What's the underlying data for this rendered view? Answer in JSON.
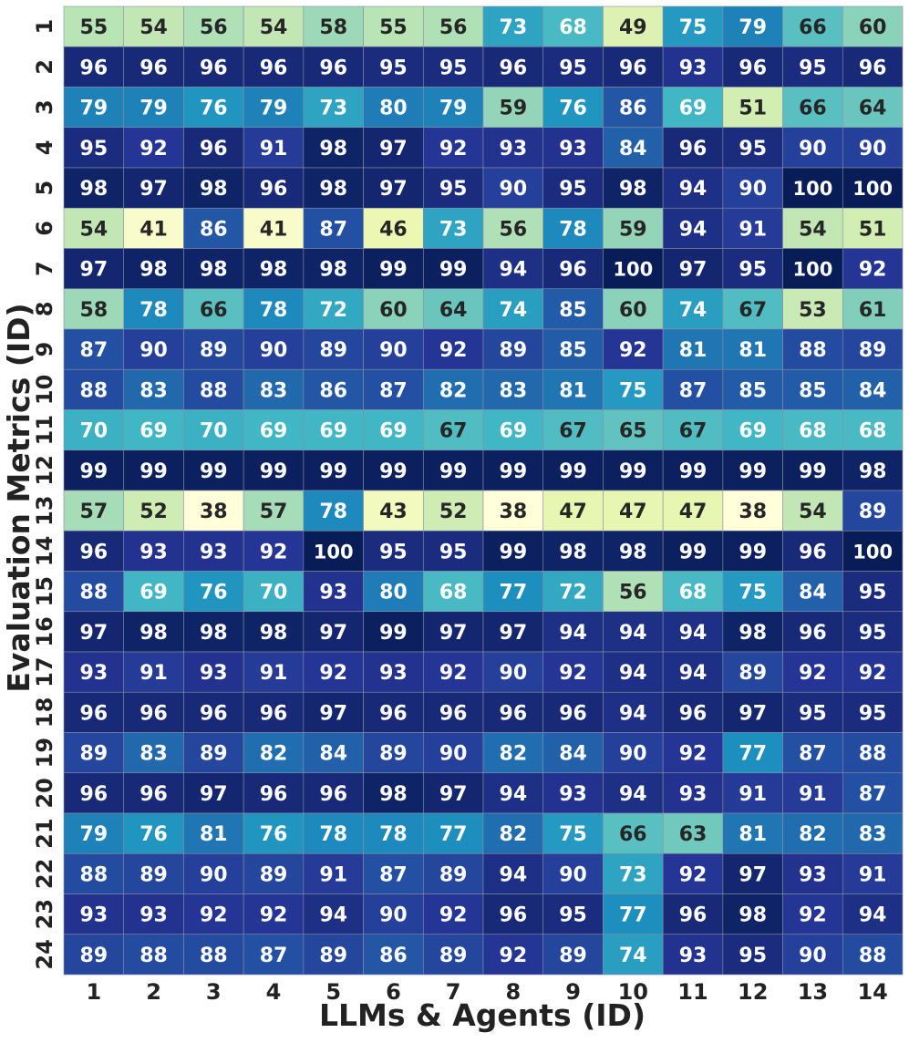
{
  "chart_data": {
    "type": "heatmap",
    "xlabel": "LLMs & Agents (ID)",
    "ylabel": "Evaluation Metrics (ID)",
    "x_categories": [
      "1",
      "2",
      "3",
      "4",
      "5",
      "6",
      "7",
      "8",
      "9",
      "10",
      "11",
      "12",
      "13",
      "14"
    ],
    "y_categories": [
      "1",
      "2",
      "3",
      "4",
      "5",
      "6",
      "7",
      "8",
      "9",
      "10",
      "11",
      "12",
      "13",
      "14",
      "15",
      "16",
      "17",
      "18",
      "19",
      "20",
      "21",
      "22",
      "23",
      "24"
    ],
    "colormap": "YlGnBu",
    "value_range": [
      38,
      100
    ],
    "values": [
      [
        55,
        54,
        56,
        54,
        58,
        55,
        56,
        73,
        68,
        49,
        75,
        79,
        66,
        60
      ],
      [
        96,
        96,
        96,
        96,
        96,
        95,
        95,
        96,
        95,
        96,
        93,
        96,
        95,
        96
      ],
      [
        79,
        79,
        76,
        79,
        73,
        80,
        79,
        59,
        76,
        86,
        69,
        51,
        66,
        64
      ],
      [
        95,
        92,
        96,
        91,
        98,
        97,
        92,
        93,
        93,
        84,
        96,
        95,
        90,
        90
      ],
      [
        98,
        97,
        98,
        96,
        98,
        97,
        95,
        90,
        95,
        98,
        94,
        90,
        100,
        100
      ],
      [
        54,
        41,
        86,
        41,
        87,
        46,
        73,
        56,
        78,
        59,
        94,
        91,
        54,
        51
      ],
      [
        97,
        98,
        98,
        98,
        98,
        99,
        99,
        94,
        96,
        100,
        97,
        95,
        100,
        92
      ],
      [
        58,
        78,
        66,
        78,
        72,
        60,
        64,
        74,
        85,
        60,
        74,
        67,
        53,
        61
      ],
      [
        87,
        90,
        89,
        90,
        89,
        90,
        92,
        89,
        85,
        92,
        81,
        81,
        88,
        89
      ],
      [
        88,
        83,
        88,
        83,
        86,
        87,
        82,
        83,
        81,
        75,
        87,
        85,
        85,
        84
      ],
      [
        70,
        69,
        70,
        69,
        69,
        69,
        67,
        69,
        67,
        65,
        67,
        69,
        68,
        68
      ],
      [
        99,
        99,
        99,
        99,
        99,
        99,
        99,
        99,
        99,
        99,
        99,
        99,
        99,
        98
      ],
      [
        57,
        52,
        38,
        57,
        78,
        43,
        52,
        38,
        47,
        47,
        47,
        38,
        54,
        89
      ],
      [
        96,
        93,
        93,
        92,
        100,
        95,
        95,
        99,
        98,
        98,
        99,
        99,
        96,
        100
      ],
      [
        88,
        69,
        76,
        70,
        93,
        80,
        68,
        77,
        72,
        56,
        68,
        75,
        84,
        95
      ],
      [
        97,
        98,
        98,
        98,
        97,
        99,
        97,
        97,
        94,
        94,
        94,
        98,
        96,
        95
      ],
      [
        93,
        91,
        93,
        91,
        92,
        93,
        92,
        90,
        92,
        94,
        94,
        89,
        92,
        92
      ],
      [
        96,
        96,
        96,
        96,
        97,
        96,
        96,
        96,
        96,
        94,
        96,
        97,
        95,
        95
      ],
      [
        89,
        83,
        89,
        82,
        84,
        89,
        90,
        82,
        84,
        90,
        92,
        77,
        87,
        88
      ],
      [
        96,
        96,
        97,
        96,
        96,
        98,
        97,
        94,
        93,
        94,
        93,
        91,
        91,
        87
      ],
      [
        79,
        76,
        81,
        76,
        78,
        78,
        77,
        82,
        75,
        66,
        63,
        81,
        82,
        83
      ],
      [
        88,
        89,
        90,
        89,
        91,
        87,
        89,
        94,
        90,
        73,
        92,
        97,
        93,
        91
      ],
      [
        93,
        93,
        92,
        92,
        94,
        90,
        92,
        96,
        95,
        77,
        96,
        98,
        92,
        94
      ],
      [
        89,
        88,
        88,
        87,
        89,
        86,
        89,
        92,
        89,
        74,
        93,
        95,
        90,
        88
      ]
    ]
  }
}
